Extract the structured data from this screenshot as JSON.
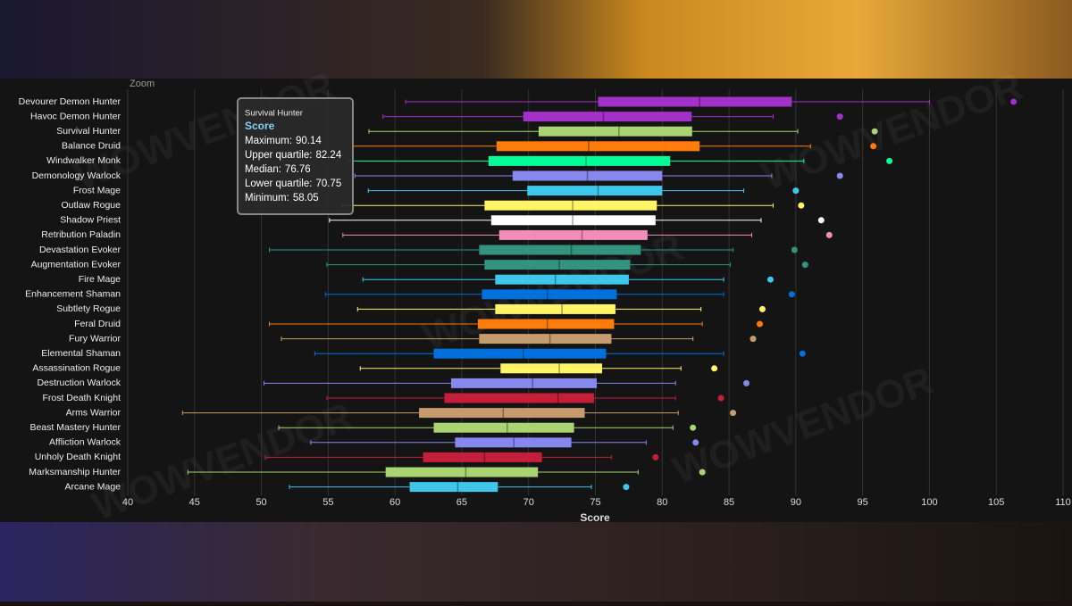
{
  "chart_data": {
    "type": "boxplot",
    "zoom_label": "Zoom",
    "xlabel": "Score",
    "watermark": "WOWVENDOR",
    "categories": [
      "Devourer Demon Hunter",
      "Havoc Demon Hunter",
      "Survival Hunter",
      "Balance Druid",
      "Windwalker Monk",
      "Demonology Warlock",
      "Frost Mage",
      "Outlaw Rogue",
      "Shadow Priest",
      "Retribution Paladin",
      "Devastation Evoker",
      "Augmentation Evoker",
      "Fire Mage",
      "Enhancement Shaman",
      "Subtlety Rogue",
      "Feral Druid",
      "Fury Warrior",
      "Elemental Shaman",
      "Assassination Rogue",
      "Destruction Warlock",
      "Frost Death Knight",
      "Arms Warrior",
      "Beast Mastery Hunter",
      "Affliction Warlock",
      "Unholy Death Knight",
      "Marksmanship Hunter",
      "Arcane Mage"
    ],
    "colors": [
      "#a330c9",
      "#a330c9",
      "#aad372",
      "#ff7c0a",
      "#00ff98",
      "#8788ee",
      "#3fc7eb",
      "#fff468",
      "#ffffff",
      "#f48cba",
      "#33937f",
      "#33937f",
      "#3fc7eb",
      "#0070dd",
      "#fff468",
      "#ff7c0a",
      "#c69b6d",
      "#0070dd",
      "#fff468",
      "#8788ee",
      "#c41e3a",
      "#c69b6d",
      "#aad372",
      "#8788ee",
      "#c41e3a",
      "#aad372",
      "#3fc7eb"
    ],
    "min": [
      60.8,
      59.1,
      58.05,
      56.8,
      56.5,
      57.0,
      58.0,
      56.0,
      55.1,
      56.1,
      50.6,
      54.9,
      57.6,
      54.8,
      57.2,
      50.6,
      51.5,
      54.0,
      57.4,
      50.2,
      54.9,
      44.1,
      51.3,
      53.7,
      50.3,
      44.5,
      52.1
    ],
    "q1": [
      75.2,
      69.6,
      70.75,
      67.6,
      67.0,
      68.8,
      69.9,
      66.7,
      67.2,
      67.8,
      66.3,
      66.7,
      67.5,
      66.5,
      67.5,
      66.2,
      66.3,
      62.9,
      67.9,
      64.2,
      63.7,
      61.8,
      62.9,
      64.5,
      62.1,
      59.3,
      61.1
    ],
    "median": [
      82.8,
      75.6,
      76.76,
      74.5,
      74.3,
      74.4,
      75.2,
      73.3,
      73.3,
      74.0,
      73.2,
      72.3,
      72.0,
      71.4,
      72.5,
      71.4,
      71.6,
      69.6,
      72.3,
      70.3,
      72.2,
      68.1,
      68.4,
      68.9,
      66.7,
      65.3,
      64.7
    ],
    "q3": [
      89.7,
      82.2,
      82.24,
      82.8,
      80.6,
      80.0,
      80.0,
      79.6,
      79.5,
      78.9,
      78.4,
      77.6,
      77.5,
      76.6,
      76.5,
      76.4,
      76.2,
      75.8,
      75.5,
      75.1,
      74.9,
      74.2,
      73.4,
      73.2,
      71.0,
      70.7,
      67.7
    ],
    "max": [
      100.0,
      88.3,
      90.14,
      91.1,
      90.6,
      88.2,
      86.1,
      88.3,
      87.4,
      86.7,
      85.3,
      85.1,
      84.6,
      84.6,
      82.9,
      83.0,
      82.3,
      84.6,
      81.4,
      81.0,
      81.0,
      81.2,
      80.8,
      78.8,
      76.2,
      78.2,
      74.7
    ],
    "outliers": [
      106.3,
      93.3,
      95.9,
      95.8,
      97.0,
      93.3,
      90.0,
      90.4,
      91.9,
      92.5,
      89.9,
      90.7,
      88.1,
      89.7,
      87.5,
      87.3,
      86.8,
      90.5,
      83.9,
      86.3,
      84.4,
      85.3,
      82.3,
      82.5,
      79.5,
      83.0,
      77.3
    ],
    "xlim": [
      40,
      110
    ],
    "xticks": [
      40,
      45,
      50,
      55,
      60,
      65,
      70,
      75,
      80,
      85,
      90,
      95,
      100,
      105,
      110
    ],
    "grid": true,
    "tooltip": {
      "category": 2,
      "series": "Score",
      "labels": [
        "Maximum:",
        "Upper quartile:",
        "Median:",
        "Lower quartile:",
        "Minimum:"
      ]
    }
  }
}
